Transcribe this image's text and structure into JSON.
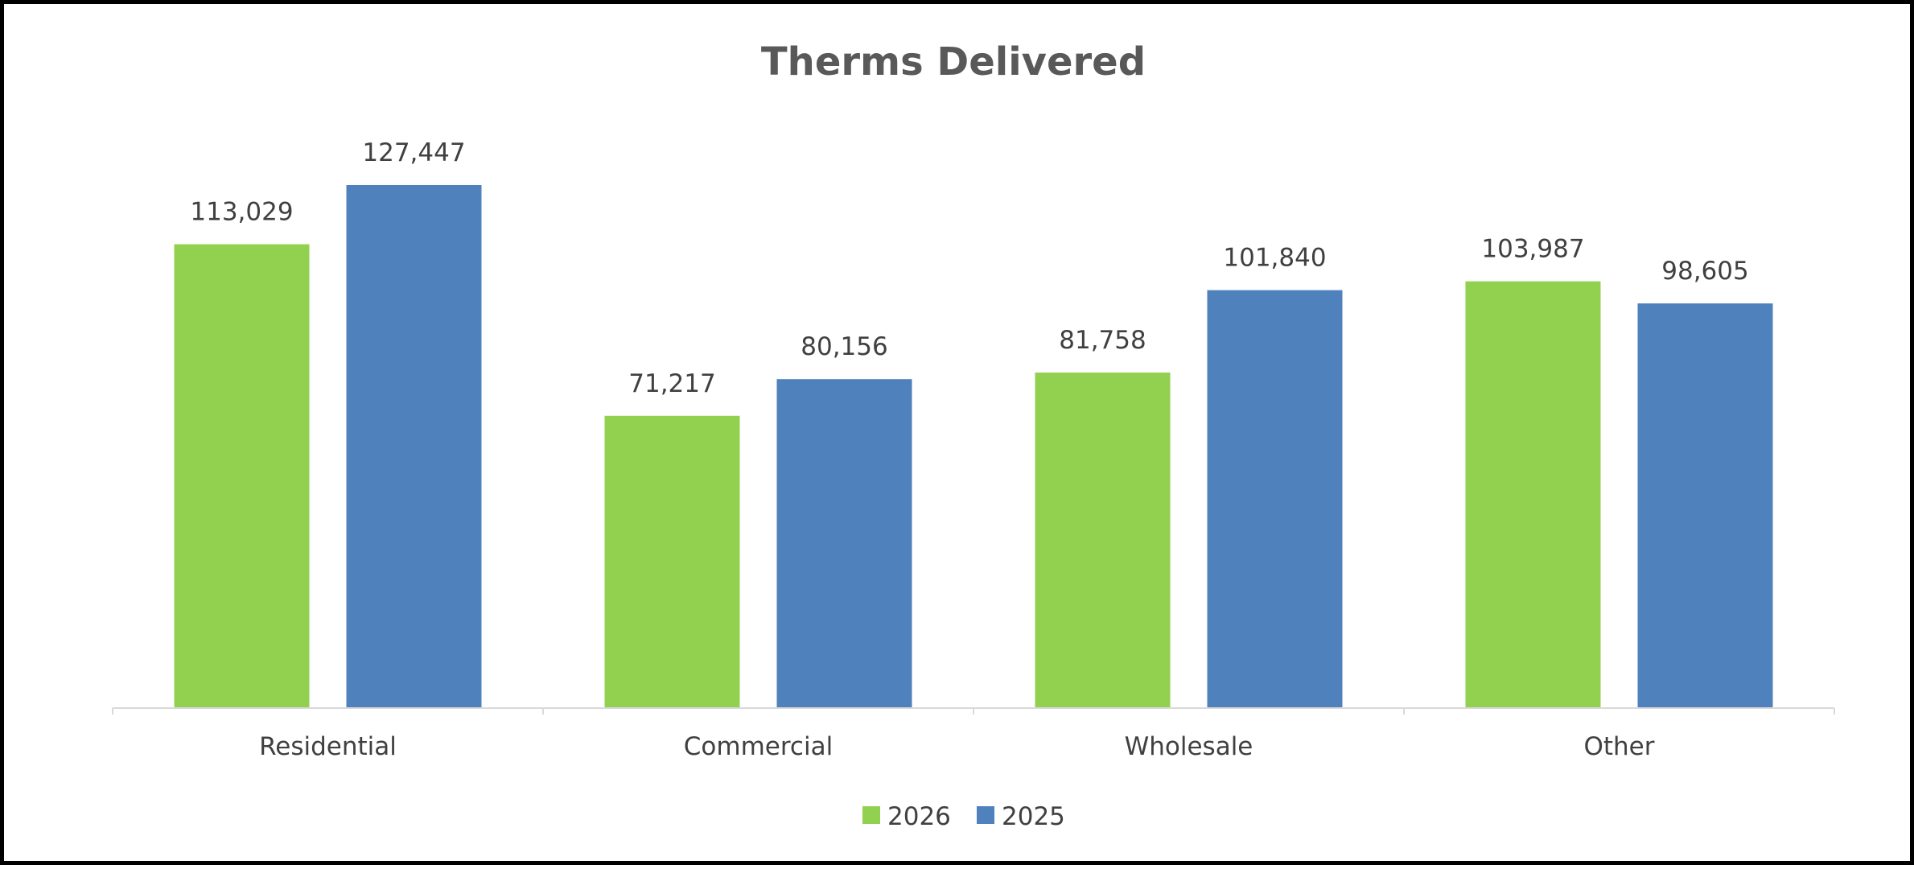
{
  "chart_data": {
    "type": "bar",
    "title": "Therms Delivered",
    "xlabel": "",
    "ylabel": "",
    "categories": [
      "Residential",
      "Commercial",
      "Wholesale",
      "Other"
    ],
    "series": [
      {
        "name": "2026",
        "values": [
          113029,
          71217,
          81758,
          103987
        ],
        "labels": [
          "113,029",
          "71,217",
          "81,758",
          "103,987"
        ],
        "color": "#92d050"
      },
      {
        "name": "2025",
        "values": [
          127447,
          80156,
          101840,
          98605
        ],
        "labels": [
          "127,447",
          "80,156",
          "101,840",
          "98,605"
        ],
        "color": "#4f81bd"
      }
    ],
    "ylim": [
      0,
      140000
    ],
    "grid": false,
    "legend": "bottom",
    "axis_color": "#d9d9d9"
  }
}
